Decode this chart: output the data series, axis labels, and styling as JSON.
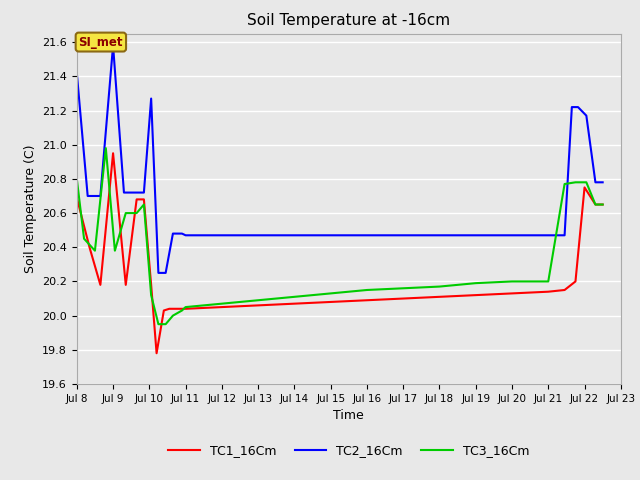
{
  "title": "Soil Temperature at -16cm",
  "xlabel": "Time",
  "ylabel": "Soil Temperature (C)",
  "ylim": [
    19.6,
    21.65
  ],
  "background_color": "#e8e8e8",
  "plot_bg_color": "#e8e8e8",
  "annotation_text": "SI_met",
  "annotation_bg": "#f5e642",
  "annotation_border": "#8B6914",
  "legend_labels": [
    "TC1_16Cm",
    "TC2_16Cm",
    "TC3_16Cm"
  ],
  "legend_colors": [
    "#ff0000",
    "#0000ff",
    "#00cc00"
  ],
  "TC1_x": [
    8.0,
    8.35,
    8.65,
    9.0,
    9.35,
    9.65,
    9.85,
    10.05,
    10.2,
    10.4,
    10.55,
    10.75,
    11.0,
    12.0,
    13.0,
    14.0,
    15.0,
    16.0,
    17.0,
    18.0,
    19.0,
    20.0,
    21.0,
    21.45,
    21.75,
    22.0,
    22.3,
    22.5
  ],
  "TC1_y": [
    20.69,
    20.4,
    20.18,
    20.95,
    20.18,
    20.68,
    20.68,
    20.18,
    19.78,
    20.03,
    20.04,
    20.04,
    20.04,
    20.05,
    20.06,
    20.07,
    20.08,
    20.09,
    20.1,
    20.11,
    20.12,
    20.13,
    20.14,
    20.15,
    20.2,
    20.75,
    20.65,
    20.65
  ],
  "TC2_x": [
    8.0,
    8.3,
    8.65,
    9.0,
    9.3,
    9.65,
    9.85,
    10.05,
    10.25,
    10.45,
    10.65,
    10.9,
    11.0,
    12.0,
    13.0,
    14.0,
    15.0,
    16.0,
    17.0,
    18.0,
    19.0,
    20.0,
    21.0,
    21.45,
    21.65,
    21.82,
    22.05,
    22.3,
    22.5
  ],
  "TC2_y": [
    21.42,
    20.7,
    20.7,
    21.58,
    20.72,
    20.72,
    20.72,
    21.27,
    20.25,
    20.25,
    20.48,
    20.48,
    20.47,
    20.47,
    20.47,
    20.47,
    20.47,
    20.47,
    20.47,
    20.47,
    20.47,
    20.47,
    20.47,
    20.47,
    21.22,
    21.22,
    21.17,
    20.78,
    20.78
  ],
  "TC3_x": [
    8.0,
    8.2,
    8.5,
    8.8,
    9.05,
    9.35,
    9.65,
    9.85,
    10.05,
    10.25,
    10.45,
    10.65,
    10.9,
    11.0,
    12.0,
    13.0,
    14.0,
    15.0,
    16.0,
    17.0,
    18.0,
    19.0,
    20.0,
    21.0,
    21.45,
    21.75,
    22.05,
    22.3,
    22.5
  ],
  "TC3_y": [
    20.8,
    20.45,
    20.38,
    20.98,
    20.38,
    20.6,
    20.6,
    20.65,
    20.12,
    19.95,
    19.95,
    20.0,
    20.03,
    20.05,
    20.07,
    20.09,
    20.11,
    20.13,
    20.15,
    20.16,
    20.17,
    20.19,
    20.2,
    20.2,
    20.77,
    20.78,
    20.78,
    20.65,
    20.65
  ]
}
